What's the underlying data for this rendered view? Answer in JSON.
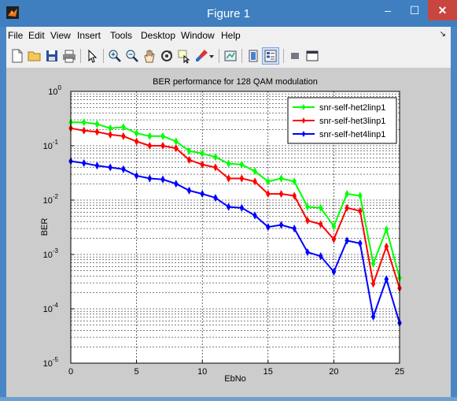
{
  "window": {
    "title": "Figure 1",
    "min_glyph": "–",
    "max_glyph": "☐",
    "close_glyph": "✕"
  },
  "menu": {
    "items": [
      "File",
      "Edit",
      "View",
      "Insert",
      "Tools",
      "Desktop",
      "Window",
      "Help"
    ],
    "overflow_glyph": "↘"
  },
  "toolbar": {
    "icons": [
      "new-figure-icon",
      "open-file-icon",
      "save-icon",
      "print-icon",
      "pointer-icon",
      "zoom-in-icon",
      "zoom-out-icon",
      "pan-icon",
      "rotate-3d-icon",
      "data-cursor-icon",
      "brush-icon",
      "dropdown-arrow-icon",
      "link-plot-icon",
      "colorbar-icon",
      "legend-icon",
      "hide-plot-tools-icon",
      "show-plot-tools-icon"
    ]
  },
  "colors": {
    "series1": "#00ff00",
    "series2": "#ff0000",
    "series3": "#0000ff"
  },
  "chart_data": {
    "type": "line",
    "title": "BER performance for 128 QAM modulation",
    "xlabel": "EbNo",
    "ylabel": "BER",
    "xlim": [
      0,
      25
    ],
    "ylim": [
      1e-05,
      1
    ],
    "yscale": "log",
    "grid": true,
    "legend_position": "top-right",
    "x_ticks": [
      "0",
      "5",
      "10",
      "15",
      "20",
      "25"
    ],
    "y_tick_exponents": [
      "0",
      "-1",
      "-2",
      "-3",
      "-4",
      "-5"
    ],
    "y_tick_base": "10",
    "x": [
      0,
      1,
      2,
      3,
      4,
      5,
      6,
      7,
      8,
      9,
      10,
      11,
      12,
      13,
      14,
      15,
      16,
      17,
      18,
      19,
      20,
      21,
      22,
      23,
      24,
      25
    ],
    "series": [
      {
        "name": "snr-self-het2linp1",
        "color": "#00ff00",
        "values": [
          0.27,
          0.27,
          0.25,
          0.21,
          0.22,
          0.17,
          0.15,
          0.15,
          0.12,
          0.08,
          0.072,
          0.062,
          0.047,
          0.045,
          0.034,
          0.022,
          0.025,
          0.022,
          0.0075,
          0.0072,
          0.0033,
          0.013,
          0.012,
          0.00068,
          0.0029,
          0.00037
        ]
      },
      {
        "name": "snr-self-het3linp1",
        "color": "#ff0000",
        "values": [
          0.21,
          0.19,
          0.18,
          0.16,
          0.15,
          0.12,
          0.1,
          0.1,
          0.09,
          0.055,
          0.045,
          0.04,
          0.025,
          0.025,
          0.022,
          0.013,
          0.013,
          0.012,
          0.0042,
          0.0036,
          0.0019,
          0.0072,
          0.0063,
          0.00029,
          0.0014,
          0.00024
        ]
      },
      {
        "name": "snr-self-het4linp1",
        "color": "#0000ff",
        "values": [
          0.052,
          0.048,
          0.043,
          0.04,
          0.037,
          0.028,
          0.025,
          0.024,
          0.02,
          0.015,
          0.013,
          0.011,
          0.0075,
          0.0072,
          0.0052,
          0.0032,
          0.0035,
          0.003,
          0.0011,
          0.00093,
          0.00048,
          0.0018,
          0.0016,
          7.2e-05,
          0.00035,
          5.5e-05
        ]
      }
    ]
  }
}
